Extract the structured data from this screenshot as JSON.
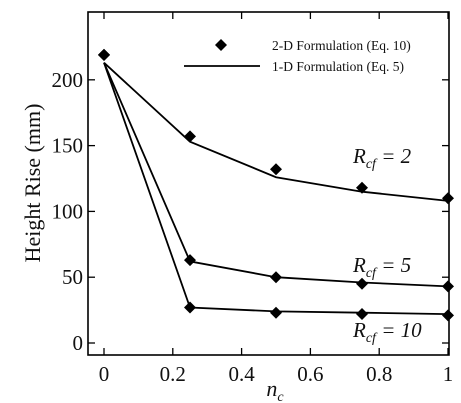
{
  "chart_data": {
    "type": "line",
    "xlabel": "n",
    "xlabel_sub": "c",
    "ylabel": "Height Rise (mm)",
    "xlim": [
      0,
      1
    ],
    "ylim": [
      0,
      220
    ],
    "x_ticks": [
      0,
      0.2,
      0.4,
      0.6,
      0.8,
      1
    ],
    "x_tick_labels": [
      "0",
      "0.2",
      "0.4",
      "0.6",
      "0.8",
      "1"
    ],
    "y_ticks": [
      0,
      50,
      100,
      150,
      200
    ],
    "y_tick_labels": [
      "0",
      "50",
      "100",
      "150",
      "200"
    ],
    "grid": false,
    "legend_position": "top-right",
    "legend": [
      {
        "marker": "diamond",
        "label": "2-D Formulation (Eq. 10)"
      },
      {
        "marker": "line",
        "label": "1-D Formulation (Eq. 5)"
      }
    ],
    "series": [
      {
        "annotation": {
          "prefix": "R",
          "sub": "cf",
          "suffix": " = 2"
        },
        "line": {
          "x": [
            0,
            0.25,
            0.5,
            0.75,
            1
          ],
          "y": [
            213,
            153,
            126,
            115,
            108
          ]
        },
        "points": {
          "x": [
            0,
            0.25,
            0.5,
            0.75,
            1
          ],
          "y": [
            219,
            157,
            132,
            118,
            110
          ]
        }
      },
      {
        "annotation": {
          "prefix": "R",
          "sub": "cf",
          "suffix": " = 5"
        },
        "line": {
          "x": [
            0,
            0.25,
            0.5,
            0.75,
            1
          ],
          "y": [
            213,
            62,
            50,
            46,
            43
          ]
        },
        "points": {
          "x": [
            0,
            0.25,
            0.5,
            0.75,
            1
          ],
          "y": [
            219,
            63,
            50,
            45,
            43
          ]
        }
      },
      {
        "annotation": {
          "prefix": "R",
          "sub": "cf",
          "suffix": " = 10"
        },
        "line": {
          "x": [
            0,
            0.25,
            0.5,
            0.75,
            1
          ],
          "y": [
            213,
            27,
            24,
            23,
            22
          ]
        },
        "points": {
          "x": [
            0,
            0.25,
            0.5,
            0.75,
            1
          ],
          "y": [
            219,
            27,
            23,
            22,
            21
          ]
        }
      }
    ]
  }
}
